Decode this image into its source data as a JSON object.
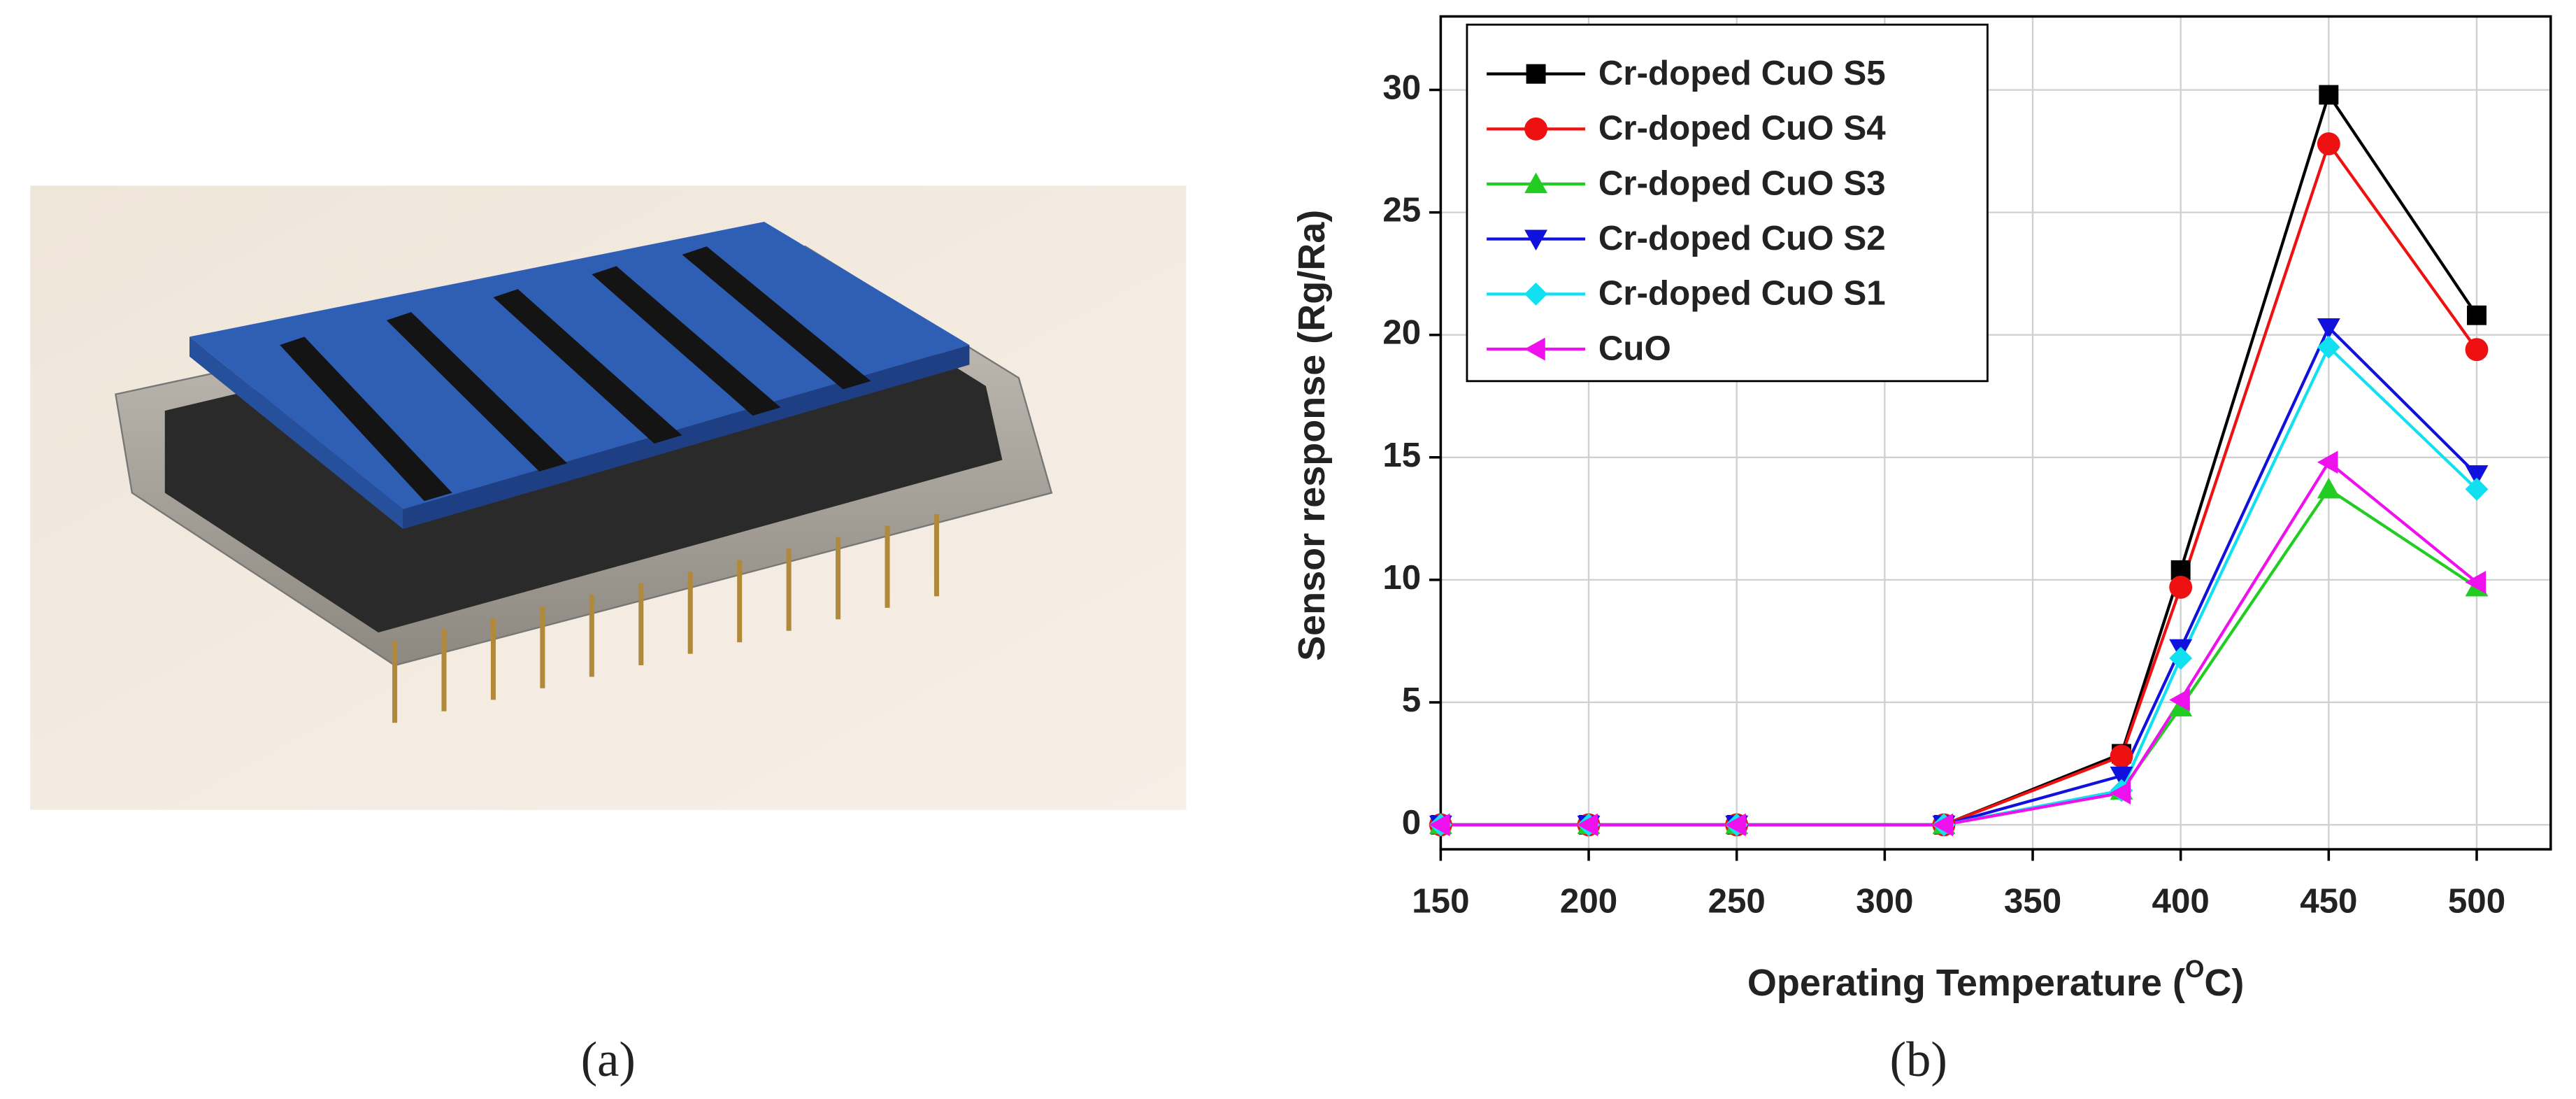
{
  "panels": {
    "a": {
      "caption": "(a)"
    },
    "b": {
      "caption": "(b)"
    }
  },
  "chart_data": {
    "type": "line",
    "xlabel": {
      "start": "Operating Temperature (",
      "sup": "O",
      "end": "C)"
    },
    "ylabel": "Sensor response (Rg/Ra)",
    "x": [
      150,
      200,
      250,
      320,
      380,
      400,
      450,
      500
    ],
    "xlim": [
      150,
      525
    ],
    "xticks": [
      150,
      200,
      250,
      300,
      350,
      400,
      450,
      500
    ],
    "ylim": [
      -1,
      33
    ],
    "yticks": [
      0,
      5,
      10,
      15,
      20,
      25,
      30
    ],
    "grid": true,
    "legend": "upper left",
    "series": [
      {
        "name": "Cr-doped CuO S5",
        "color": "#000000",
        "marker": "square",
        "values": [
          0,
          0,
          0,
          0,
          2.9,
          10.4,
          29.8,
          20.8
        ]
      },
      {
        "name": "Cr-doped CuO S4",
        "color": "#ee1111",
        "marker": "circle",
        "values": [
          0,
          0,
          0,
          0,
          2.8,
          9.7,
          27.8,
          19.4
        ]
      },
      {
        "name": "Cr-doped CuO S3",
        "color": "#22cc22",
        "marker": "triangle-up",
        "values": [
          0,
          0,
          0,
          0,
          1.4,
          4.8,
          13.7,
          9.7
        ]
      },
      {
        "name": "Cr-doped CuO S2",
        "color": "#1111dd",
        "marker": "triangle-down",
        "values": [
          0,
          0,
          0,
          0,
          2.0,
          7.2,
          20.3,
          14.3
        ]
      },
      {
        "name": "Cr-doped CuO S1",
        "color": "#11e0f0",
        "marker": "diamond",
        "values": [
          0,
          0,
          0,
          0,
          1.4,
          6.8,
          19.5,
          13.7
        ]
      },
      {
        "name": "CuO",
        "color": "#ee11ee",
        "marker": "triangle-left",
        "values": [
          0,
          0,
          0,
          0,
          1.3,
          5.1,
          14.8,
          9.9
        ]
      }
    ]
  }
}
